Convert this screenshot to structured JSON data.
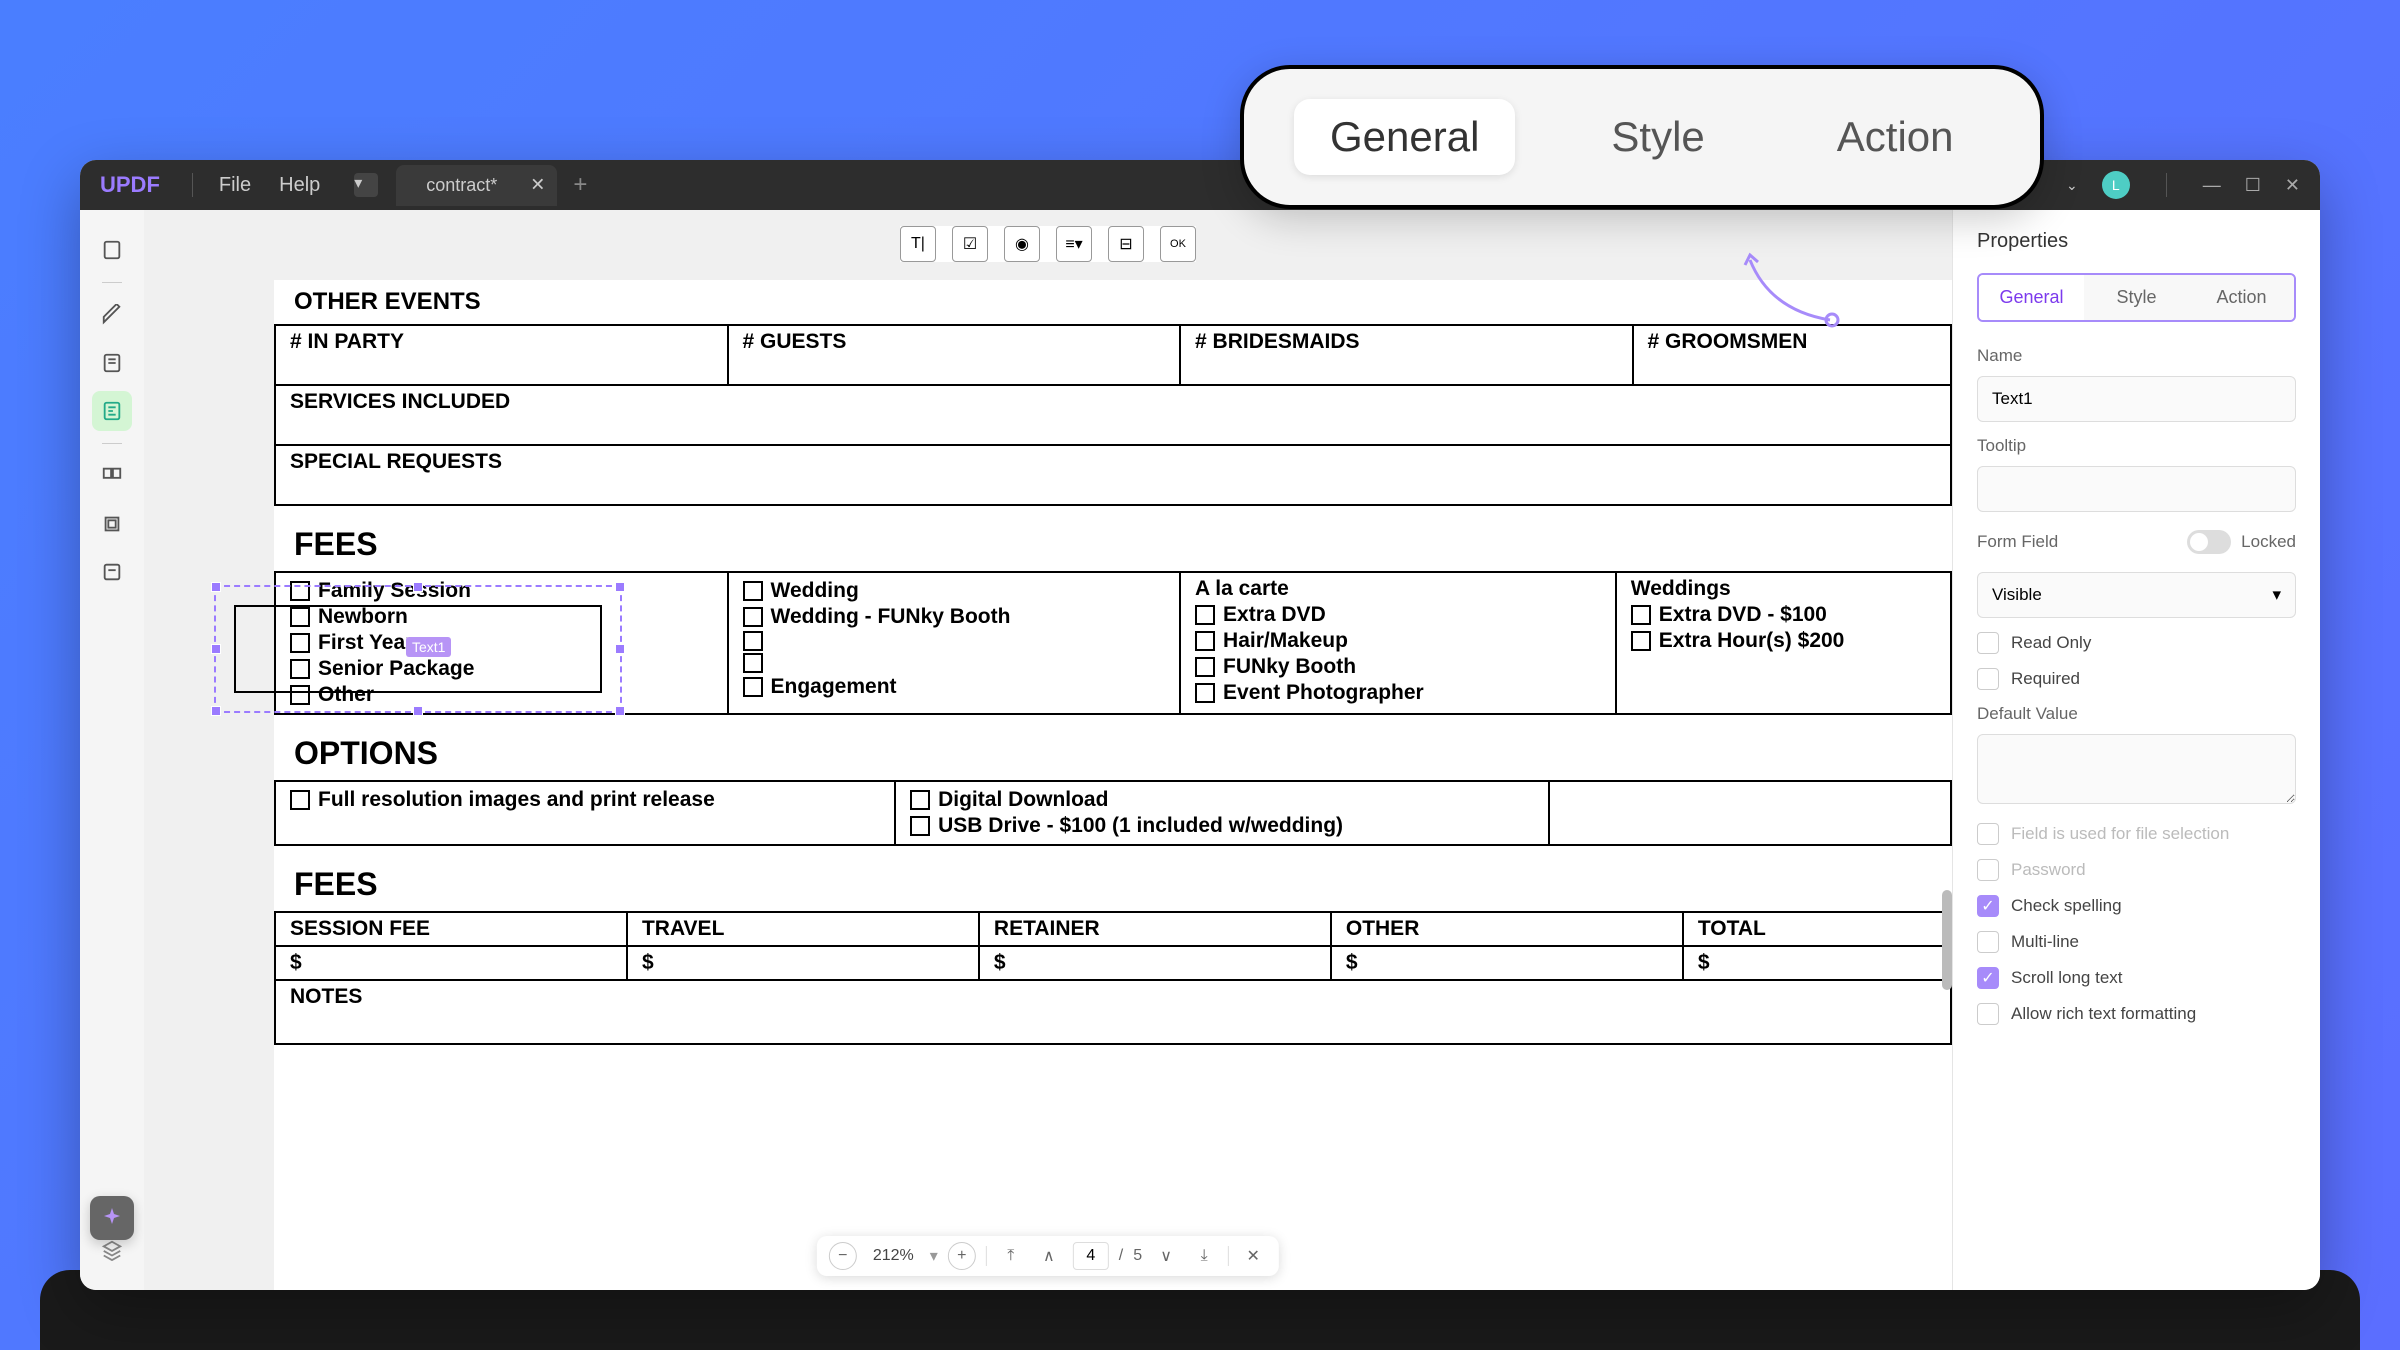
{
  "app": {
    "logo": "UPDF",
    "menu": [
      "File",
      "Help"
    ],
    "tab_name": "contract*",
    "avatar_letter": "L"
  },
  "callout": {
    "tabs": [
      "General",
      "Style",
      "Action"
    ],
    "active": 0
  },
  "toolbar_icons": [
    "T|",
    "☑",
    "◉",
    "≡",
    "⊟",
    "OK"
  ],
  "document": {
    "sections": {
      "other_events": "OTHER EVENTS",
      "party_headers": [
        "# IN PARTY",
        "# GUESTS",
        "# BRIDESMAIDS",
        "# GROOMSMEN"
      ],
      "services": "SERVICES INCLUDED",
      "special": "SPECIAL REQUESTS",
      "fees_title": "FEES",
      "options_title": "OPTIONS",
      "fees2_title": "FEES",
      "notes": "NOTES"
    },
    "fees_cols": [
      {
        "header": "",
        "items": [
          "Family Session",
          "Newborn",
          "First Year",
          "Senior Package",
          "Other"
        ]
      },
      {
        "header": "",
        "items": [
          "Wedding",
          "Wedding - FUNky Booth",
          "",
          "",
          "Engagement"
        ]
      },
      {
        "header": "A la carte",
        "items": [
          "Extra DVD",
          "Hair/Makeup",
          "FUNky Booth",
          "Event Photographer"
        ]
      },
      {
        "header": "Weddings",
        "items": [
          "Extra DVD - $100",
          "Extra Hour(s) $200"
        ]
      }
    ],
    "options_cols": [
      [
        "Full resolution images and print release"
      ],
      [
        "Digital Download",
        "USB Drive - $100 (1 included w/wedding)"
      ],
      []
    ],
    "fees2_headers": [
      "SESSION FEE",
      "TRAVEL",
      "RETAINER",
      "OTHER",
      "TOTAL"
    ],
    "dollar": "$"
  },
  "selected_field_label": "Text1",
  "bottom_bar": {
    "zoom": "212%",
    "page_current": "4",
    "page_total": "5"
  },
  "properties": {
    "title": "Properties",
    "tabs": [
      "General",
      "Style",
      "Action"
    ],
    "name_label": "Name",
    "name_value": "Text1",
    "tooltip_label": "Tooltip",
    "tooltip_value": "",
    "form_field_label": "Form Field",
    "locked_label": "Locked",
    "visibility": "Visible",
    "read_only": "Read Only",
    "required": "Required",
    "default_value_label": "Default Value",
    "checks": [
      {
        "label": "Field is used for file selection",
        "checked": false,
        "disabled": true
      },
      {
        "label": "Password",
        "checked": false,
        "disabled": true
      },
      {
        "label": "Check spelling",
        "checked": true,
        "disabled": false
      },
      {
        "label": "Multi-line",
        "checked": false,
        "disabled": false
      },
      {
        "label": "Scroll long text",
        "checked": true,
        "disabled": false
      },
      {
        "label": "Allow rich text formatting",
        "checked": false,
        "disabled": false
      }
    ]
  },
  "colors": {
    "accent": "#a78bfa",
    "bg_gradient_start": "#4a7eff",
    "bg_gradient_end": "#5b6eff"
  }
}
